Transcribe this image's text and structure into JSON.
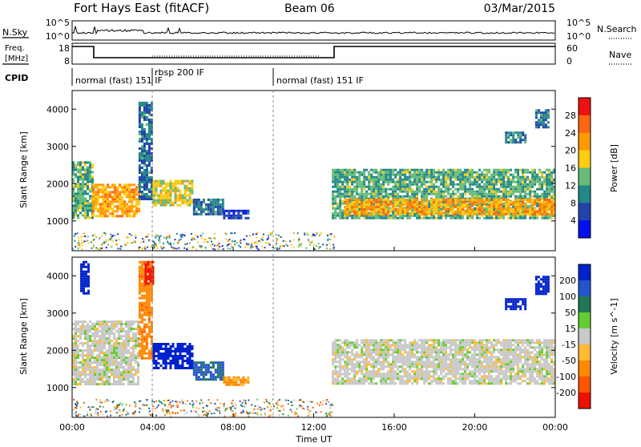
{
  "header": {
    "station": "Fort Hays East (fitACF)",
    "beam": "Beam 06",
    "date": "03/Mar/2015"
  },
  "noise_panel": {
    "left_label": "N.Sky",
    "right_label": "N.Search",
    "left_ticks": [
      "10^5",
      "10^0"
    ],
    "right_ticks": [
      "10^5",
      "10^0"
    ]
  },
  "freq_panel": {
    "left_label_line1": "Freq.",
    "left_label_line2": "[MHz]",
    "right_label": "Nave",
    "left_ticks": [
      "18",
      "8"
    ],
    "right_ticks": [
      "60",
      "0"
    ]
  },
  "cpid": {
    "label": "CPID",
    "modes": [
      "normal (fast) 151 IF",
      "rbsp 200 IF",
      "normal (fast) 151 IF"
    ]
  },
  "axes": {
    "x_ticks": [
      "00:00",
      "04:00",
      "08:00",
      "12:00",
      "16:00",
      "20:00",
      "00:00"
    ],
    "x_label": "Time UT",
    "y_label": "Slant Range [km]",
    "y_ticks": [
      "4000",
      "3000",
      "2000",
      "1000"
    ]
  },
  "power_colorbar": {
    "label": "Power [dB]",
    "ticks": [
      "28",
      "24",
      "20",
      "16",
      "12",
      "8",
      "4"
    ],
    "colors": [
      "#ee1111",
      "#ff6611",
      "#ff9900",
      "#ffcc11",
      "#66bb77",
      "#228888",
      "#2244aa",
      "#0011ee"
    ]
  },
  "velocity_colorbar": {
    "label": "Velocity [m s^-1]",
    "ticks": [
      "200",
      "100",
      "50",
      "15",
      "-15",
      "-50",
      "-100",
      "-200"
    ],
    "colors": [
      "#0022cc",
      "#2255cc",
      "#227755",
      "#66cc33",
      "#c8c8c8",
      "#ffbb33",
      "#ff8800",
      "#ff5500",
      "#ee1100"
    ]
  },
  "chart_data": [
    {
      "type": "heatmap",
      "title": "Power",
      "xlabel": "Time UT",
      "ylabel": "Slant Range [km]",
      "xlim": [
        0,
        24
      ],
      "ylim": [
        200,
        4500
      ],
      "colorbar_range": [
        0,
        30
      ],
      "regions": [
        {
          "t0": 0.0,
          "t1": 1.0,
          "r_lo": 1100,
          "r_hi": 2600,
          "value": 12
        },
        {
          "t0": 1.0,
          "t1": 3.3,
          "r_lo": 1100,
          "r_hi": 2000,
          "value": 20
        },
        {
          "t0": 3.3,
          "t1": 3.9,
          "r_lo": 1600,
          "r_hi": 4200,
          "value": 8
        },
        {
          "t0": 4.0,
          "t1": 6.0,
          "r_lo": 1400,
          "r_hi": 2100,
          "value": 16
        },
        {
          "t0": 6.0,
          "t1": 7.5,
          "r_lo": 1200,
          "r_hi": 1600,
          "value": 8
        },
        {
          "t0": 7.5,
          "t1": 8.8,
          "r_lo": 1100,
          "r_hi": 1300,
          "value": 4
        },
        {
          "t0": 12.9,
          "t1": 24.0,
          "r_lo": 1100,
          "r_hi": 2400,
          "value": 12
        },
        {
          "t0": 13.5,
          "t1": 24.0,
          "r_lo": 1200,
          "r_hi": 1600,
          "value": 20
        },
        {
          "t0": 21.5,
          "t1": 22.5,
          "r_lo": 3100,
          "r_hi": 3400,
          "value": 8
        },
        {
          "t0": 23.0,
          "t1": 23.7,
          "r_lo": 3500,
          "r_hi": 4000,
          "value": 8
        }
      ]
    },
    {
      "type": "heatmap",
      "title": "Velocity",
      "xlabel": "Time UT",
      "ylabel": "Slant Range [km]",
      "xlim": [
        0,
        24
      ],
      "ylim": [
        200,
        4500
      ],
      "colorbar_range": [
        -200,
        200
      ],
      "regions": [
        {
          "t0": 0.0,
          "t1": 3.3,
          "r_lo": 1100,
          "r_hi": 2800,
          "value": 0
        },
        {
          "t0": 3.3,
          "t1": 3.9,
          "r_lo": 1800,
          "r_hi": 4400,
          "value": -60
        },
        {
          "t0": 3.6,
          "t1": 4.0,
          "r_lo": 3800,
          "r_hi": 4400,
          "value": -200
        },
        {
          "t0": 0.4,
          "t1": 0.8,
          "r_lo": 3500,
          "r_hi": 4400,
          "value": 200
        },
        {
          "t0": 4.0,
          "t1": 6.0,
          "r_lo": 1500,
          "r_hi": 2200,
          "value": 200
        },
        {
          "t0": 6.0,
          "t1": 7.5,
          "r_lo": 1200,
          "r_hi": 1700,
          "value": 80
        },
        {
          "t0": 7.5,
          "t1": 8.8,
          "r_lo": 1100,
          "r_hi": 1300,
          "value": -40
        },
        {
          "t0": 12.9,
          "t1": 24.0,
          "r_lo": 1100,
          "r_hi": 2300,
          "value": 0
        },
        {
          "t0": 21.5,
          "t1": 22.5,
          "r_lo": 3100,
          "r_hi": 3400,
          "value": 200
        },
        {
          "t0": 23.0,
          "t1": 23.7,
          "r_lo": 3500,
          "r_hi": 4000,
          "value": 200
        }
      ]
    }
  ]
}
